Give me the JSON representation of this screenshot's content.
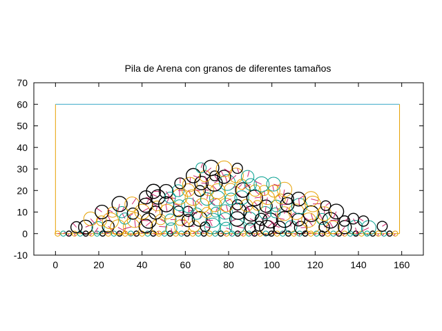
{
  "chart_data": {
    "type": "scatter",
    "title": "Pila de Arena con granos de diferentes tamaños",
    "xlabel": "",
    "ylabel": "",
    "xlim": [
      -10,
      170
    ],
    "ylim": [
      -10,
      70
    ],
    "x_ticks": [
      0,
      20,
      40,
      60,
      80,
      100,
      120,
      140,
      160
    ],
    "y_ticks": [
      -10,
      0,
      10,
      20,
      30,
      40,
      50,
      60,
      70
    ],
    "grid": false,
    "legend": "none",
    "container": {
      "walls": [
        [
          0,
          0
        ],
        [
          0,
          60
        ],
        [
          159,
          60
        ],
        [
          159,
          0
        ]
      ],
      "wall_color": "#e6a000",
      "top_color": "#33a6c6"
    },
    "floor_grains": {
      "y": 0,
      "x_start": 1,
      "x_end": 157,
      "spacing": 2.6,
      "radius": 1.2
    },
    "pile": {
      "x_min": 1,
      "x_max": 157,
      "peak_x": 76,
      "peak_height": 33
    },
    "grain_colors": [
      "#e6a000",
      "#009e8e",
      "#000000"
    ],
    "marker_color": "#d0206a"
  }
}
